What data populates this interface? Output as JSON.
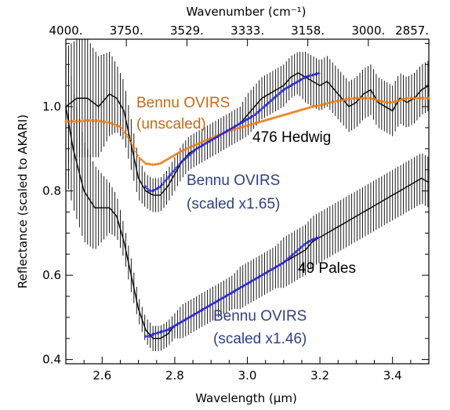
{
  "chart_data": {
    "type": "line",
    "xlabel": "Wavelength (μm)",
    "ylabel": "Reflectance (scaled to AKARI)",
    "top_axis_label": "Wavenumber (cm⁻¹)",
    "xlim": [
      2.5,
      3.5
    ],
    "ylim": [
      0.39,
      1.16
    ],
    "x_ticks": [
      "2.6",
      "2.8",
      "3.0",
      "3.2",
      "3.4"
    ],
    "x_tick_values": [
      2.6,
      2.8,
      3.0,
      3.2,
      3.4
    ],
    "y_ticks": [
      "0.4",
      "0.6",
      "0.8",
      "1.0"
    ],
    "y_tick_values": [
      0.4,
      0.6,
      0.8,
      1.0
    ],
    "top_ticks": [
      "4000.",
      "3750.",
      "3529.",
      "3333.",
      "3158.",
      "3000.",
      "2857."
    ],
    "top_tick_wavenumbers": [
      4000,
      3750,
      3529,
      3333,
      3158,
      3000,
      2857
    ],
    "grid": false,
    "colors": {
      "hedwig": "#000000",
      "pales": "#000000",
      "ovirs_unscaled": "#e8801a",
      "ovirs_scaled": "#2a2ad8"
    },
    "annotations": {
      "ovirs_unscaled": [
        "Bennu OVIRS",
        "(unscaled)"
      ],
      "hedwig": "476 Hedwig",
      "ovirs_scaled_165": [
        "Bennu OVIRS",
        "(scaled x1.65)"
      ],
      "pales": "49 Pales",
      "ovirs_scaled_146": [
        "Bennu OVIRS",
        "(scaled x1.46)"
      ]
    },
    "series": [
      {
        "name": "476 Hedwig",
        "style": "line-with-errorbars",
        "x": [
          2.5,
          2.53,
          2.56,
          2.59,
          2.62,
          2.64,
          2.66,
          2.68,
          2.7,
          2.72,
          2.74,
          2.76,
          2.78,
          2.8,
          2.82,
          2.84,
          2.86,
          2.88,
          2.9,
          2.92,
          2.94,
          2.96,
          2.98,
          3.0,
          3.02,
          3.04,
          3.06,
          3.08,
          3.1,
          3.12,
          3.14,
          3.16,
          3.18,
          3.2,
          3.22,
          3.24,
          3.26,
          3.28,
          3.3,
          3.32,
          3.34,
          3.36,
          3.38,
          3.4,
          3.42,
          3.44,
          3.46,
          3.48,
          3.5
        ],
        "y": [
          1.0,
          1.02,
          1.02,
          1.0,
          1.03,
          1.02,
          0.99,
          0.91,
          0.83,
          0.8,
          0.79,
          0.79,
          0.81,
          0.84,
          0.87,
          0.89,
          0.9,
          0.91,
          0.92,
          0.93,
          0.94,
          0.95,
          0.96,
          0.98,
          1.0,
          1.02,
          1.03,
          1.04,
          1.05,
          1.07,
          1.08,
          1.07,
          1.06,
          1.05,
          1.06,
          1.04,
          1.02,
          1.0,
          1.01,
          1.03,
          1.04,
          1.01,
          1.0,
          0.99,
          1.02,
          1.01,
          1.02,
          1.04,
          1.05
        ],
        "err": [
          0.14,
          0.14,
          0.14,
          0.12,
          0.1,
          0.08,
          0.07,
          0.06,
          0.05,
          0.04,
          0.04,
          0.04,
          0.04,
          0.04,
          0.04,
          0.04,
          0.04,
          0.04,
          0.04,
          0.04,
          0.04,
          0.04,
          0.04,
          0.05,
          0.05,
          0.05,
          0.05,
          0.05,
          0.05,
          0.05,
          0.05,
          0.06,
          0.06,
          0.06,
          0.06,
          0.06,
          0.06,
          0.06,
          0.06,
          0.06,
          0.06,
          0.06,
          0.06,
          0.06,
          0.06,
          0.06,
          0.06,
          0.06,
          0.06
        ]
      },
      {
        "name": "49 Pales",
        "style": "line-with-errorbars",
        "x": [
          2.5,
          2.52,
          2.55,
          2.58,
          2.6,
          2.62,
          2.64,
          2.66,
          2.68,
          2.7,
          2.72,
          2.74,
          2.76,
          2.78,
          2.8,
          2.82,
          2.84,
          2.86,
          2.88,
          2.9,
          2.92,
          2.94,
          2.96,
          2.98,
          3.0,
          3.02,
          3.04,
          3.06,
          3.08,
          3.1,
          3.12,
          3.14,
          3.16,
          3.18,
          3.2,
          3.22,
          3.24,
          3.26,
          3.28,
          3.3,
          3.32,
          3.34,
          3.36,
          3.38,
          3.4,
          3.42,
          3.44,
          3.46,
          3.48,
          3.5
        ],
        "y": [
          1.0,
          0.9,
          0.8,
          0.76,
          0.76,
          0.76,
          0.74,
          0.68,
          0.6,
          0.52,
          0.47,
          0.45,
          0.45,
          0.46,
          0.48,
          0.49,
          0.5,
          0.51,
          0.52,
          0.53,
          0.54,
          0.55,
          0.56,
          0.57,
          0.58,
          0.59,
          0.6,
          0.61,
          0.62,
          0.63,
          0.64,
          0.65,
          0.66,
          0.68,
          0.69,
          0.7,
          0.71,
          0.72,
          0.73,
          0.74,
          0.75,
          0.76,
          0.77,
          0.78,
          0.79,
          0.8,
          0.81,
          0.82,
          0.83,
          0.82
        ],
        "err": [
          0.17,
          0.14,
          0.12,
          0.1,
          0.08,
          0.06,
          0.05,
          0.04,
          0.04,
          0.03,
          0.03,
          0.03,
          0.03,
          0.03,
          0.03,
          0.04,
          0.04,
          0.04,
          0.04,
          0.04,
          0.04,
          0.04,
          0.04,
          0.05,
          0.05,
          0.05,
          0.05,
          0.05,
          0.05,
          0.06,
          0.06,
          0.06,
          0.06,
          0.06,
          0.06,
          0.06,
          0.06,
          0.06,
          0.06,
          0.06,
          0.06,
          0.06,
          0.06,
          0.06,
          0.06,
          0.06,
          0.06,
          0.06,
          0.06,
          0.06
        ]
      },
      {
        "name": "Bennu OVIRS (unscaled)",
        "style": "points",
        "x": [
          2.5,
          2.53,
          2.56,
          2.59,
          2.62,
          2.65,
          2.67,
          2.69,
          2.7,
          2.72,
          2.74,
          2.76,
          2.78,
          2.8,
          2.82,
          2.84,
          2.86,
          2.88,
          2.9,
          2.92,
          2.94,
          2.96,
          2.98,
          3.0,
          3.02,
          3.04,
          3.06,
          3.08,
          3.1,
          3.12,
          3.14,
          3.16,
          3.18,
          3.2,
          3.22,
          3.24,
          3.26,
          3.28,
          3.3,
          3.32,
          3.34,
          3.36,
          3.38,
          3.4,
          3.42,
          3.44,
          3.46,
          3.48,
          3.5
        ],
        "y": [
          0.965,
          0.965,
          0.967,
          0.966,
          0.962,
          0.952,
          0.93,
          0.9,
          0.88,
          0.865,
          0.862,
          0.865,
          0.875,
          0.885,
          0.895,
          0.903,
          0.91,
          0.918,
          0.925,
          0.932,
          0.94,
          0.945,
          0.95,
          0.955,
          0.96,
          0.965,
          0.97,
          0.975,
          0.98,
          0.985,
          0.99,
          0.995,
          1.0,
          1.003,
          1.008,
          1.012,
          1.015,
          1.018,
          1.02,
          1.02,
          1.02,
          1.015,
          1.01,
          1.01,
          1.015,
          1.02,
          1.02,
          1.02,
          1.02
        ]
      },
      {
        "name": "Bennu OVIRS (scaled x1.65)",
        "style": "points",
        "x": [
          2.72,
          2.73,
          2.74,
          2.76,
          2.78,
          2.8,
          2.82,
          2.84,
          2.86,
          2.88,
          2.9,
          2.92,
          2.94,
          2.96,
          2.98,
          3.0,
          3.02,
          3.04,
          3.06,
          3.08,
          3.1,
          3.12,
          3.14,
          3.16,
          3.18,
          3.2
        ],
        "y": [
          0.81,
          0.8,
          0.8,
          0.81,
          0.83,
          0.85,
          0.87,
          0.885,
          0.9,
          0.91,
          0.92,
          0.93,
          0.94,
          0.95,
          0.96,
          0.97,
          0.98,
          0.995,
          1.01,
          1.025,
          1.04,
          1.05,
          1.06,
          1.07,
          1.075,
          1.08
        ]
      },
      {
        "name": "Bennu OVIRS (scaled x1.46)",
        "style": "points",
        "x": [
          2.72,
          2.73,
          2.74,
          2.76,
          2.78,
          2.8,
          2.82,
          2.84,
          2.86,
          2.88,
          2.9,
          2.92,
          2.94,
          2.96,
          2.98,
          3.0,
          3.02,
          3.04,
          3.06,
          3.08,
          3.1,
          3.12,
          3.14,
          3.16,
          3.18,
          3.2
        ],
        "y": [
          0.455,
          0.455,
          0.46,
          0.465,
          0.47,
          0.48,
          0.49,
          0.5,
          0.51,
          0.52,
          0.53,
          0.54,
          0.55,
          0.56,
          0.57,
          0.58,
          0.59,
          0.6,
          0.61,
          0.62,
          0.63,
          0.645,
          0.66,
          0.675,
          0.685,
          0.69
        ]
      }
    ]
  }
}
